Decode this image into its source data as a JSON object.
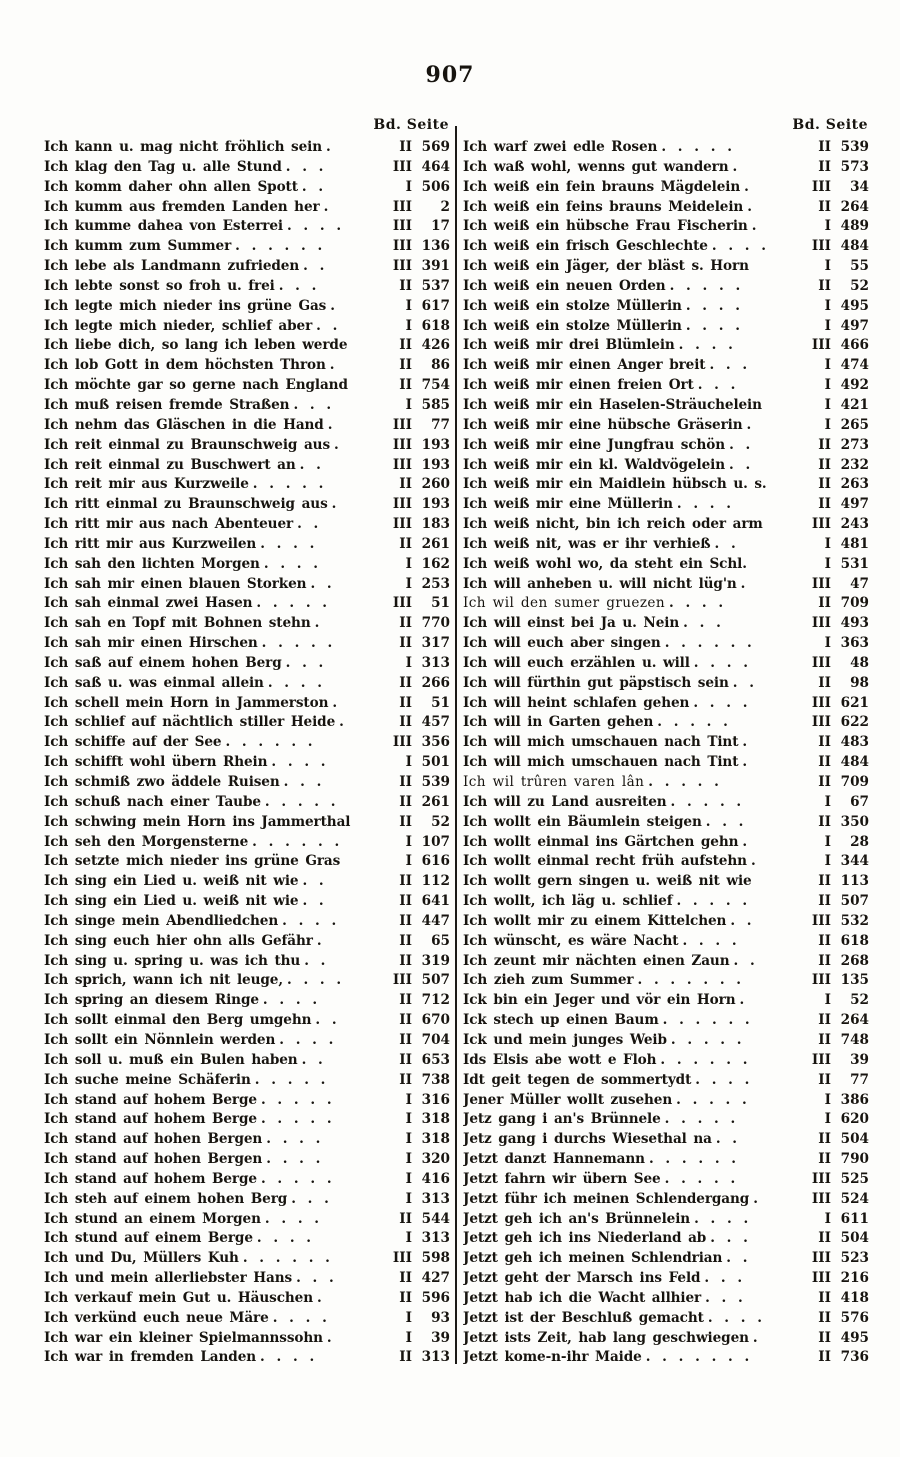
{
  "page_number": "907",
  "column_header": "Bd. Seite",
  "columns": {
    "left": {
      "entries": [
        {
          "t": "Ich kann u. mag nicht fröhlich sein",
          "d": ".",
          "v": "II",
          "p": "569"
        },
        {
          "t": "Ich klag den Tag u. alle Stund",
          "d": ". . .",
          "v": "III",
          "p": "464"
        },
        {
          "t": "Ich komm daher ohn allen Spott",
          "d": ". .",
          "v": "I",
          "p": "506"
        },
        {
          "t": "Ich kumm aus fremden Landen her",
          "d": ".",
          "v": "III",
          "p": "2"
        },
        {
          "t": "Ich kumme dahea von Esterrei",
          "d": ". . . .",
          "v": "III",
          "p": "17"
        },
        {
          "t": "Ich kumm zum Summer",
          "d": ". . . . . .",
          "v": "III",
          "p": "136"
        },
        {
          "t": "Ich lebe als Landmann zufrieden",
          "d": ". .",
          "v": "III",
          "p": "391"
        },
        {
          "t": "Ich lebte sonst so froh u. frei",
          "d": ". . .",
          "v": "II",
          "p": "537"
        },
        {
          "t": "Ich legte mich nieder ins grüne Gas",
          "d": ".",
          "v": "I",
          "p": "617"
        },
        {
          "t": "Ich legte mich nieder, schlief aber",
          "d": ". .",
          "v": "I",
          "p": "618"
        },
        {
          "t": "Ich liebe dich, so lang ich leben werde",
          "d": "",
          "v": "II",
          "p": "426"
        },
        {
          "t": "Ich lob Gott in dem höchsten Thron",
          "d": ".",
          "v": "II",
          "p": "86"
        },
        {
          "t": "Ich möchte gar so gerne nach England",
          "d": "",
          "v": "II",
          "p": "754"
        },
        {
          "t": "Ich muß reisen fremde Straßen",
          "d": ". . .",
          "v": "I",
          "p": "585"
        },
        {
          "t": "Ich nehm das Gläschen in die Hand",
          "d": ".",
          "v": "III",
          "p": "77"
        },
        {
          "t": "Ich reit einmal zu Braunschweig aus",
          "d": ".",
          "v": "III",
          "p": "193"
        },
        {
          "t": "Ich reit einmal zu Buschwert an",
          "d": ". .",
          "v": "III",
          "p": "193"
        },
        {
          "t": "Ich reit mir aus Kurzweile",
          "d": ". . . . .",
          "v": "II",
          "p": "260"
        },
        {
          "t": "Ich ritt einmal zu Braunschweig aus",
          "d": ".",
          "v": "III",
          "p": "193"
        },
        {
          "t": "Ich ritt mir aus nach Abenteuer",
          "d": ". .",
          "v": "III",
          "p": "183"
        },
        {
          "t": "Ich ritt mir aus Kurzweilen",
          "d": ". . . .",
          "v": "II",
          "p": "261"
        },
        {
          "t": "Ich sah den lichten Morgen",
          "d": ". . . .",
          "v": "I",
          "p": "162"
        },
        {
          "t": "Ich sah mir einen blauen Storken",
          "d": ". .",
          "v": "I",
          "p": "253"
        },
        {
          "t": "Ich sah einmal zwei Hasen",
          "d": ". . . . .",
          "v": "III",
          "p": "51"
        },
        {
          "t": "Ich sah en Topf mit Bohnen stehn",
          "d": ".",
          "v": "II",
          "p": "770"
        },
        {
          "t": "Ich sah mir einen Hirschen",
          "d": ". . . . .",
          "v": "II",
          "p": "317"
        },
        {
          "t": "Ich saß auf einem hohen Berg",
          "d": ". . .",
          "v": "I",
          "p": "313"
        },
        {
          "t": "Ich saß u. was einmal allein",
          "d": ". . . .",
          "v": "II",
          "p": "266"
        },
        {
          "t": "Ich schell mein Horn in Jammerston",
          "d": ".",
          "v": "II",
          "p": "51"
        },
        {
          "t": "Ich schlief auf nächtlich stiller Heide",
          "d": ".",
          "v": "II",
          "p": "457"
        },
        {
          "t": "Ich schiffe auf der See",
          "d": ". . . . . .",
          "v": "III",
          "p": "356"
        },
        {
          "t": "Ich schifft wohl übern Rhein",
          "d": ". . . .",
          "v": "I",
          "p": "501"
        },
        {
          "t": "Ich schmiß zwo äddele Ruisen",
          "d": ". . .",
          "v": "II",
          "p": "539"
        },
        {
          "t": "Ich schuß nach einer Taube",
          "d": ". . . . .",
          "v": "II",
          "p": "261"
        },
        {
          "t": "Ich schwing mein Horn ins Jammerthal",
          "d": "",
          "v": "II",
          "p": "52"
        },
        {
          "t": "Ich seh den Morgensterne",
          "d": ". . . . . .",
          "v": "I",
          "p": "107"
        },
        {
          "t": "Ich setzte mich nieder ins grüne Gras",
          "d": "",
          "v": "I",
          "p": "616"
        },
        {
          "t": "Ich sing ein Lied u. weiß nit wie",
          "d": ". .",
          "v": "II",
          "p": "112"
        },
        {
          "t": "Ich sing ein Lied u. weiß nit wie",
          "d": ". .",
          "v": "II",
          "p": "641"
        },
        {
          "t": "Ich singe mein Abendliedchen",
          "d": ". . . .",
          "v": "II",
          "p": "447"
        },
        {
          "t": "Ich sing euch hier ohn alls Gefähr",
          "d": ".",
          "v": "II",
          "p": "65"
        },
        {
          "t": "Ich sing u. spring u. was ich thu",
          "d": ". .",
          "v": "II",
          "p": "319"
        },
        {
          "t": "Ich sprich, wann ich nit leuge,",
          "d": ". . . .",
          "v": "III",
          "p": "507"
        },
        {
          "t": "Ich spring an diesem Ringe",
          "d": ". . . .",
          "v": "II",
          "p": "712"
        },
        {
          "t": "Ich sollt einmal den Berg umgehn",
          "d": ". .",
          "v": "II",
          "p": "670"
        },
        {
          "t": "Ich sollt ein Nönnlein werden",
          "d": ". . . .",
          "v": "II",
          "p": "704"
        },
        {
          "t": "Ich soll u. muß ein Bulen haben",
          "d": ". .",
          "v": "II",
          "p": "653"
        },
        {
          "t": "Ich suche meine Schäferin",
          "d": ". . . . .",
          "v": "II",
          "p": "738"
        },
        {
          "t": "Ich stand auf hohem Berge",
          "d": ". . . . .",
          "v": "I",
          "p": "316"
        },
        {
          "t": "Ich stand auf hohem Berge",
          "d": ". . . . .",
          "v": "I",
          "p": "318"
        },
        {
          "t": "Ich stand auf hohen Bergen",
          "d": ". . . .",
          "v": "I",
          "p": "318"
        },
        {
          "t": "Ich stand auf hohen Bergen",
          "d": ". . . .",
          "v": "I",
          "p": "320"
        },
        {
          "t": "Ich stand auf hohem Berge",
          "d": ". . . . .",
          "v": "I",
          "p": "416"
        },
        {
          "t": "Ich steh auf einem hohen Berg",
          "d": ". . .",
          "v": "I",
          "p": "313"
        },
        {
          "t": "Ich stund an einem Morgen",
          "d": ". . . .",
          "v": "II",
          "p": "544"
        },
        {
          "t": "Ich stund auf einem Berge",
          "d": ". . . .",
          "v": "I",
          "p": "313"
        },
        {
          "t": "Ich und Du, Müllers Kuh",
          "d": ". . . . . .",
          "v": "III",
          "p": "598"
        },
        {
          "t": "Ich und mein allerliebster Hans",
          "d": ". . .",
          "v": "II",
          "p": "427"
        },
        {
          "t": "Ich verkauf mein Gut u. Häuschen",
          "d": ".",
          "v": "II",
          "p": "596"
        },
        {
          "t": "Ich verkünd euch neue Märe",
          "d": ". . . .",
          "v": "I",
          "p": "93"
        },
        {
          "t": "Ich war ein kleiner Spielmannssohn",
          "d": ".",
          "v": "I",
          "p": "39"
        },
        {
          "t": "Ich war in fremden Landen",
          "d": ". . . .",
          "v": "II",
          "p": "313"
        }
      ]
    },
    "right": {
      "entries": [
        {
          "t": "Ich warf zwei edle Rosen",
          "d": ". . . . .",
          "v": "II",
          "p": "539"
        },
        {
          "t": "Ich waß wohl, wenns gut wandern",
          "d": ".",
          "v": "II",
          "p": "573"
        },
        {
          "t": "Ich weiß ein fein brauns Mägdelein",
          "d": ".",
          "v": "III",
          "p": "34"
        },
        {
          "t": "Ich weiß ein feins brauns Meidelein",
          "d": ".",
          "v": "II",
          "p": "264"
        },
        {
          "t": "Ich weiß ein hübsche Frau Fischerin",
          "d": ".",
          "v": "I",
          "p": "489"
        },
        {
          "t": "Ich weiß ein frisch Geschlechte",
          "d": ". . . .",
          "v": "III",
          "p": "484"
        },
        {
          "t": "Ich weiß ein Jäger, der bläst s. Horn",
          "d": "",
          "v": "I",
          "p": "55"
        },
        {
          "t": "Ich weiß ein neuen Orden",
          "d": ". . . . .",
          "v": "II",
          "p": "52"
        },
        {
          "t": "Ich weiß ein stolze Müllerin",
          "d": ". . . .",
          "v": "I",
          "p": "495"
        },
        {
          "t": "Ich weiß ein stolze Müllerin",
          "d": ". . . .",
          "v": "I",
          "p": "497"
        },
        {
          "t": "Ich weiß mir drei Blümlein",
          "d": ". . . .",
          "v": "III",
          "p": "466"
        },
        {
          "t": "Ich weiß mir einen Anger breit",
          "d": ". . .",
          "v": "I",
          "p": "474"
        },
        {
          "t": "Ich weiß mir einen freien Ort",
          "d": ". . .",
          "v": "I",
          "p": "492"
        },
        {
          "t": "Ich weiß mir ein Haselen-Sträuchelein",
          "d": "",
          "v": "I",
          "p": "421"
        },
        {
          "t": "Ich weiß mir eine hübsche Gräserin",
          "d": ".",
          "v": "I",
          "p": "265"
        },
        {
          "t": "Ich weiß mir eine Jungfrau schön",
          "d": ". .",
          "v": "II",
          "p": "273"
        },
        {
          "t": "Ich weiß mir ein kl. Waldvögelein",
          "d": ". .",
          "v": "II",
          "p": "232"
        },
        {
          "t": "Ich weiß mir ein Maidlein hübsch u. s.",
          "d": "",
          "v": "II",
          "p": "263"
        },
        {
          "t": "Ich weiß mir eine Müllerin",
          "d": ". . . .",
          "v": "II",
          "p": "497"
        },
        {
          "t": "Ich weiß nicht, bin ich reich oder arm",
          "d": "",
          "v": "III",
          "p": "243"
        },
        {
          "t": "Ich weiß nit, was er ihr verhieß",
          "d": ". .",
          "v": "I",
          "p": "481"
        },
        {
          "t": "Ich weiß wohl wo, da steht ein Schl.",
          "d": "",
          "v": "I",
          "p": "531"
        },
        {
          "t": "Ich will anheben u. will nicht lüg'n",
          "d": ".",
          "v": "III",
          "p": "47"
        },
        {
          "t": "Ich wil den sumer gruezen",
          "d": ". . . .",
          "v": "II",
          "p": "709",
          "a": 1
        },
        {
          "t": "Ich will einst bei Ja u. Nein",
          "d": ". . .",
          "v": "III",
          "p": "493"
        },
        {
          "t": "Ich will euch aber singen",
          "d": ". . . . . .",
          "v": "I",
          "p": "363"
        },
        {
          "t": "Ich will euch erzählen u. will",
          "d": ". . . .",
          "v": "III",
          "p": "48"
        },
        {
          "t": "Ich will fürthin gut päpstisch sein",
          "d": ". .",
          "v": "II",
          "p": "98"
        },
        {
          "t": "Ich will heint schlafen gehen",
          "d": ". . . .",
          "v": "III",
          "p": "621"
        },
        {
          "t": "Ich will in Garten gehen",
          "d": ". . . . .",
          "v": "III",
          "p": "622"
        },
        {
          "t": "Ich will mich umschauen nach Tint",
          "d": ".",
          "v": "II",
          "p": "483"
        },
        {
          "t": "Ich will mich umschauen nach Tint",
          "d": ".",
          "v": "II",
          "p": "484"
        },
        {
          "t": "Ich wil trûren varen lân",
          "d": ". . . . .",
          "v": "II",
          "p": "709",
          "a": 1
        },
        {
          "t": "Ich will zu Land ausreiten",
          "d": ". . . . .",
          "v": "I",
          "p": "67"
        },
        {
          "t": "Ich wollt ein Bäumlein steigen",
          "d": ". . .",
          "v": "II",
          "p": "350"
        },
        {
          "t": "Ich wollt einmal ins Gärtchen gehn",
          "d": ".",
          "v": "I",
          "p": "28"
        },
        {
          "t": "Ich wollt einmal recht früh aufstehn",
          "d": ".",
          "v": "I",
          "p": "344"
        },
        {
          "t": "Ich wollt gern singen u. weiß nit wie",
          "d": "",
          "v": "II",
          "p": "113"
        },
        {
          "t": "Ich wollt, ich läg u. schlief",
          "d": ". . . . .",
          "v": "II",
          "p": "507"
        },
        {
          "t": "Ich wollt mir zu einem Kittelchen",
          "d": ". .",
          "v": "III",
          "p": "532"
        },
        {
          "t": "Ich wünscht, es wäre Nacht",
          "d": ". . . .",
          "v": "II",
          "p": "618"
        },
        {
          "t": "Ich zeunt mir nächten einen Zaun",
          "d": ". .",
          "v": "II",
          "p": "268"
        },
        {
          "t": "Ich zieh zum Summer",
          "d": ". . . . . . .",
          "v": "III",
          "p": "135"
        },
        {
          "t": "Ick bin ein Jeger und vör ein Horn",
          "d": ".",
          "v": "I",
          "p": "52"
        },
        {
          "t": "Ick stech up einen Baum",
          "d": ". . . . . .",
          "v": "II",
          "p": "264"
        },
        {
          "t": "Ick und mein junges Weib",
          "d": ". . . . .",
          "v": "II",
          "p": "748"
        },
        {
          "t": "Ids Elsis abe wott e Floh",
          "d": ". . . . . .",
          "v": "III",
          "p": "39"
        },
        {
          "t": "Idt geit tegen de sommertydt",
          "d": ". . . .",
          "v": "II",
          "p": "77"
        },
        {
          "t": "Jener Müller wollt zusehen",
          "d": ". . . . .",
          "v": "I",
          "p": "386"
        },
        {
          "t": "Jetz gang i an's Brünnele",
          "d": ". . . . .",
          "v": "I",
          "p": "620"
        },
        {
          "t": "Jetz gang i durchs Wiesethal na",
          "d": ". .",
          "v": "II",
          "p": "504"
        },
        {
          "t": "Jetzt danzt Hannemann",
          "d": ". . . . . .",
          "v": "II",
          "p": "790"
        },
        {
          "t": "Jetzt fahrn wir übern See",
          "d": ". . . . .",
          "v": "III",
          "p": "525"
        },
        {
          "t": "Jetzt führ ich meinen Schlendergang",
          "d": ".",
          "v": "III",
          "p": "524"
        },
        {
          "t": "Jetzt geh ich an's Brünnelein",
          "d": ". . . .",
          "v": "I",
          "p": "611"
        },
        {
          "t": "Jetzt geh ich ins Niederland ab",
          "d": ". . .",
          "v": "II",
          "p": "504"
        },
        {
          "t": "Jetzt geh ich meinen Schlendrian",
          "d": ". .",
          "v": "III",
          "p": "523"
        },
        {
          "t": "Jetzt geht der Marsch ins Feld",
          "d": ". . .",
          "v": "III",
          "p": "216"
        },
        {
          "t": "Jetzt hab ich die Wacht allhier",
          "d": ". . .",
          "v": "II",
          "p": "418"
        },
        {
          "t": "Jetzt ist der Beschluß gemacht",
          "d": ". . . .",
          "v": "II",
          "p": "576"
        },
        {
          "t": "Jetzt ists Zeit, hab lang geschwiegen",
          "d": ".",
          "v": "II",
          "p": "495"
        },
        {
          "t": "Jetzt kome-n-ihr Maide",
          "d": ". . . . . . .",
          "v": "II",
          "p": "736"
        }
      ]
    }
  }
}
